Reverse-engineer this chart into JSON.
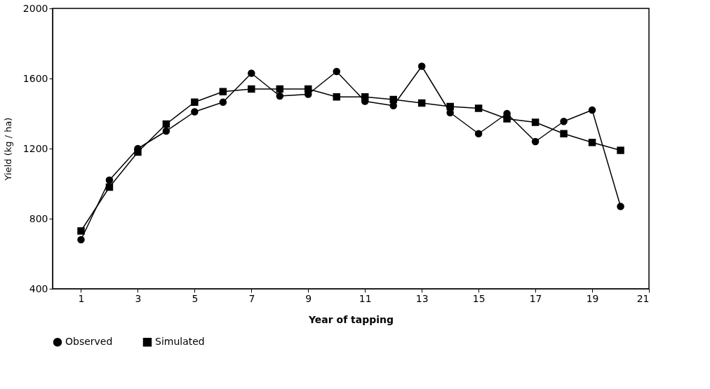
{
  "chart_data": {
    "type": "line",
    "xlabel": "Year of tapping",
    "ylabel": "Yield (kg / ha)",
    "x": [
      1,
      2,
      3,
      4,
      5,
      6,
      7,
      8,
      9,
      10,
      11,
      12,
      13,
      14,
      15,
      16,
      17,
      18,
      19,
      20
    ],
    "series": [
      {
        "name": "Observed",
        "color": "#000000",
        "marker": "circle",
        "values": [
          680,
          1020,
          1200,
          1300,
          1410,
          1465,
          1630,
          1500,
          1510,
          1640,
          1470,
          1445,
          1670,
          1405,
          1285,
          1400,
          1240,
          1355,
          1420,
          870
        ]
      },
      {
        "name": "Simulated",
        "color": "#000000",
        "marker": "square",
        "values": [
          730,
          980,
          1180,
          1340,
          1465,
          1525,
          1540,
          1540,
          1540,
          1495,
          1495,
          1480,
          1460,
          1440,
          1430,
          1370,
          1350,
          1285,
          1235,
          1190
        ]
      }
    ],
    "xlim": [
      0,
      21
    ],
    "xticks": [
      1,
      3,
      5,
      7,
      9,
      11,
      13,
      15,
      17,
      19,
      21
    ],
    "ylim": [
      400,
      2000
    ],
    "yticks": [
      400,
      800,
      1200,
      1600,
      2000
    ],
    "grid": false,
    "legend": "bottom",
    "line_style": "solid"
  }
}
